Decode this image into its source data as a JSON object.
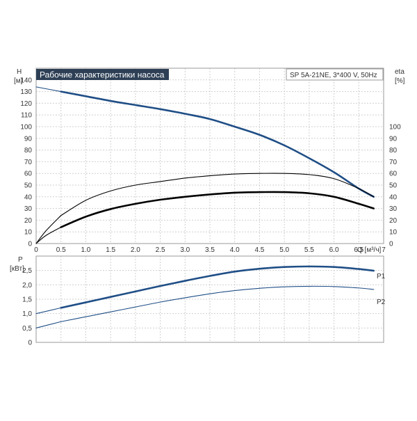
{
  "chart_data": [
    {
      "type": "line",
      "title": "Рабочие характеристики насоса",
      "subtitle": "SP 5A-21NE, 3*400 V, 50Hz",
      "xlabel": "Q [м³/ч]",
      "ylabel_left": "H",
      "ylabel_left_unit": "[м]",
      "ylabel_right": "eta",
      "ylabel_right_unit": "[%]",
      "xlim": [
        0,
        7
      ],
      "ylim_left": [
        0,
        150
      ],
      "ylim_right": [
        0,
        150
      ],
      "x_ticks": [
        "0",
        "0.5",
        "1.0",
        "1.5",
        "2.0",
        "2.5",
        "3.0",
        "3.5",
        "4.0",
        "4.5",
        "5.0",
        "5.5",
        "6.0",
        "6.5",
        "7"
      ],
      "y_ticks_left": [
        "0",
        "10",
        "20",
        "30",
        "40",
        "50",
        "60",
        "70",
        "80",
        "90",
        "100",
        "110",
        "120",
        "130",
        "140"
      ],
      "y_ticks_right": [
        "0",
        "10",
        "20",
        "30",
        "40",
        "50",
        "60",
        "70",
        "80",
        "90",
        "100"
      ],
      "grid": true,
      "series": [
        {
          "x": [
            0.5,
            1.0,
            1.5,
            2.0,
            2.5,
            3.0,
            3.5,
            4.0,
            4.5,
            5.0,
            5.5,
            6.0,
            6.5,
            6.8
          ],
          "y": [
            130,
            126,
            122,
            118.5,
            115,
            111,
            106.5,
            100,
            93,
            84,
            73,
            61,
            47,
            40
          ],
          "color": "#1f4e86",
          "width": "thick"
        },
        {
          "x": [
            0.5,
            1.0,
            1.5,
            2.0,
            2.5,
            3.0,
            3.5,
            4.0,
            4.5,
            5.0,
            5.5,
            6.0,
            6.5,
            6.8
          ],
          "y": [
            14,
            23,
            29.5,
            34,
            37.5,
            40,
            42,
            43.5,
            44,
            44,
            43,
            40,
            34,
            30
          ],
          "color": "#000000",
          "width": "thick"
        },
        {
          "x": [
            0.5,
            1.0,
            1.5,
            2.0,
            2.5,
            3.0,
            3.5,
            4.0,
            4.5,
            5.0,
            5.5,
            6.0,
            6.5,
            6.8
          ],
          "y": [
            24,
            37,
            45,
            50,
            53,
            56,
            58,
            59.5,
            60,
            60,
            59,
            55.5,
            47,
            40
          ],
          "color": "#000000",
          "width": "thin"
        },
        {
          "x": [
            0,
            0.5
          ],
          "y": [
            134,
            130
          ],
          "color": "#1f4e86",
          "width": "thin"
        },
        {
          "x": [
            0,
            0.2,
            0.5
          ],
          "y": [
            0,
            7,
            14
          ],
          "color": "#000000",
          "width": "thin"
        },
        {
          "x": [
            0,
            0.2,
            0.5
          ],
          "y": [
            0,
            11,
            24
          ],
          "color": "#000000",
          "width": "thin"
        }
      ]
    },
    {
      "type": "line",
      "ylabel": "P",
      "ylabel_unit": "[кВт]",
      "xlim": [
        0,
        7
      ],
      "ylim": [
        0,
        3
      ],
      "y_ticks": [
        "0",
        "0,5",
        "1,0",
        "1,5",
        "2,0",
        "2,5"
      ],
      "grid": true,
      "series": [
        {
          "name": "P1",
          "x": [
            0.5,
            1.0,
            1.5,
            2.0,
            2.5,
            3.0,
            3.5,
            4.0,
            4.5,
            5.0,
            5.5,
            6.0,
            6.5,
            6.8
          ],
          "y": [
            1.2,
            1.39,
            1.58,
            1.77,
            1.96,
            2.14,
            2.31,
            2.46,
            2.56,
            2.62,
            2.64,
            2.62,
            2.55,
            2.49
          ],
          "color": "#1f4e86",
          "width": "thick"
        },
        {
          "name": "P2",
          "x": [
            0.5,
            1.0,
            1.5,
            2.0,
            2.5,
            3.0,
            3.5,
            4.0,
            4.5,
            5.0,
            5.5,
            6.0,
            6.5,
            6.8
          ],
          "y": [
            0.72,
            0.89,
            1.06,
            1.23,
            1.4,
            1.55,
            1.69,
            1.8,
            1.88,
            1.93,
            1.95,
            1.94,
            1.89,
            1.84
          ],
          "color": "#1f4e86",
          "width": "thin"
        },
        {
          "x": [
            0,
            0.5
          ],
          "y": [
            1.0,
            1.2
          ],
          "color": "#1f4e86",
          "width": "thin"
        },
        {
          "x": [
            0,
            0.5
          ],
          "y": [
            0.5,
            0.72
          ],
          "color": "#1f4e86",
          "width": "thin"
        }
      ]
    }
  ]
}
